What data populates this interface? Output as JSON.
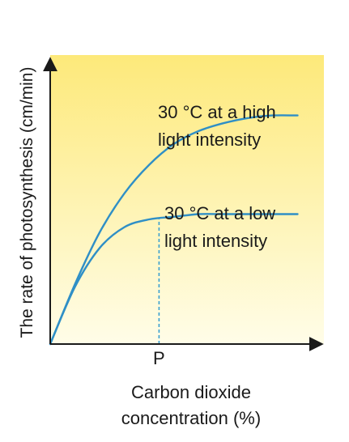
{
  "chart_data": {
    "type": "line",
    "title": "",
    "xlabel": "Carbon dioxide concentration (%)",
    "xlabel_lines": [
      "Carbon dioxide",
      "concentration (%)"
    ],
    "ylabel": "The rate of photosynthesis (cm/min)",
    "x_tick_labels": [
      "P"
    ],
    "x_tick_value": 0.44,
    "xlim": [
      0,
      1.1
    ],
    "ylim": [
      0,
      1.1
    ],
    "grid": false,
    "legend": "none (curves labelled directly)",
    "colors": {
      "curve": "#2f8fc6",
      "p_marker": "#3aa0d0",
      "axis": "#1a1a1a",
      "background_top": "#fde97a",
      "background_bottom": "#fffde8"
    },
    "series": [
      {
        "name": "30 °C at a high light intensity",
        "label_lines": [
          "30 °C at a high",
          "light intensity"
        ],
        "x": [
          0,
          0.1,
          0.2,
          0.3,
          0.4,
          0.5,
          0.6,
          0.7,
          0.8,
          0.9,
          1.0
        ],
        "y": [
          0,
          0.23,
          0.43,
          0.58,
          0.69,
          0.77,
          0.82,
          0.85,
          0.87,
          0.88,
          0.88
        ]
      },
      {
        "name": "30 °C at a low light intensity",
        "label_lines": [
          "30 °C at a low",
          "light intensity"
        ],
        "x": [
          0,
          0.1,
          0.2,
          0.3,
          0.4,
          0.5,
          0.6,
          0.7,
          0.8,
          0.9,
          1.0
        ],
        "y": [
          0,
          0.22,
          0.37,
          0.45,
          0.48,
          0.49,
          0.5,
          0.5,
          0.5,
          0.5,
          0.5
        ]
      }
    ]
  }
}
